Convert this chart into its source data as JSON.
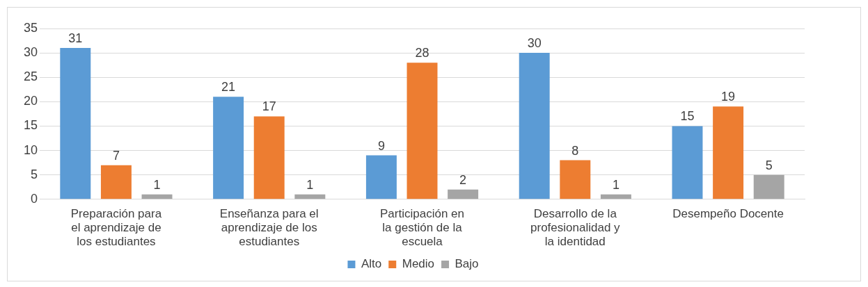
{
  "chart_data": {
    "type": "bar",
    "categories": [
      "Preparación para el aprendizaje de los estudiantes",
      "Enseñanza para el aprendizaje de los estudiantes",
      "Participación en la gestión de la escuela",
      "Desarrollo de la profesionalidad y la identidad",
      "Desempeño Docente"
    ],
    "series": [
      {
        "name": "Alto",
        "color": "#5b9bd5",
        "values": [
          31,
          21,
          9,
          30,
          15
        ]
      },
      {
        "name": "Medio",
        "color": "#ed7d31",
        "values": [
          7,
          17,
          28,
          8,
          19
        ]
      },
      {
        "name": "Bajo",
        "color": "#a5a5a5",
        "values": [
          1,
          1,
          2,
          1,
          5
        ]
      }
    ],
    "ylim": [
      0,
      35
    ],
    "yticks": [
      0,
      5,
      10,
      15,
      20,
      25,
      30,
      35
    ],
    "grid": "y",
    "legend": "bottom",
    "data_labels": true
  }
}
